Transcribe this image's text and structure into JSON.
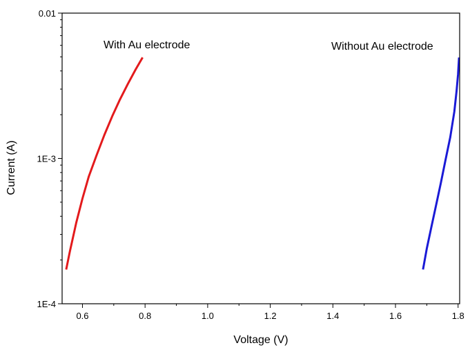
{
  "chart_data": {
    "type": "line",
    "xlabel": "Voltage (V)",
    "ylabel": "Current (A)",
    "xlim": [
      0.535,
      1.805
    ],
    "ylim": [
      0.0001,
      0.01
    ],
    "yscale": "log",
    "grid": false,
    "legend": "none",
    "x_ticks": [
      {
        "value": 0.6,
        "label": "0.6"
      },
      {
        "value": 0.8,
        "label": "0.8"
      },
      {
        "value": 1.0,
        "label": "1.0"
      },
      {
        "value": 1.2,
        "label": "1.2"
      },
      {
        "value": 1.4,
        "label": "1.4"
      },
      {
        "value": 1.6,
        "label": "1.6"
      },
      {
        "value": 1.8,
        "label": "1.8"
      }
    ],
    "y_ticks": [
      {
        "value": 0.0001,
        "label": "1E-4"
      },
      {
        "value": 0.001,
        "label": "1E-3"
      },
      {
        "value": 0.01,
        "label": "0.01"
      }
    ],
    "series": [
      {
        "color": "#e31a1c",
        "points": [
          [
            0.548,
            0.000172
          ],
          [
            0.56,
            0.00023
          ],
          [
            0.58,
            0.00036
          ],
          [
            0.6,
            0.00053
          ],
          [
            0.62,
            0.00075
          ],
          [
            0.645,
            0.00105
          ],
          [
            0.67,
            0.00145
          ],
          [
            0.695,
            0.00195
          ],
          [
            0.72,
            0.00255
          ],
          [
            0.745,
            0.00325
          ],
          [
            0.77,
            0.0041
          ],
          [
            0.792,
            0.00495
          ]
        ]
      },
      {
        "color": "#1a1ad6",
        "points": [
          [
            1.688,
            0.000172
          ],
          [
            1.7,
            0.00024
          ],
          [
            1.715,
            0.00034
          ],
          [
            1.73,
            0.00048
          ],
          [
            1.745,
            0.00068
          ],
          [
            1.76,
            0.00098
          ],
          [
            1.775,
            0.0014
          ],
          [
            1.788,
            0.0021
          ],
          [
            1.795,
            0.0029
          ],
          [
            1.8,
            0.0038
          ],
          [
            1.803,
            0.00495
          ]
        ]
      }
    ],
    "annotations": [
      {
        "text": "With Au electrode",
        "x": 0.79,
        "y": 0.0058
      },
      {
        "text": "Without Au electrode",
        "x": 1.76,
        "y": 0.0056
      }
    ]
  }
}
